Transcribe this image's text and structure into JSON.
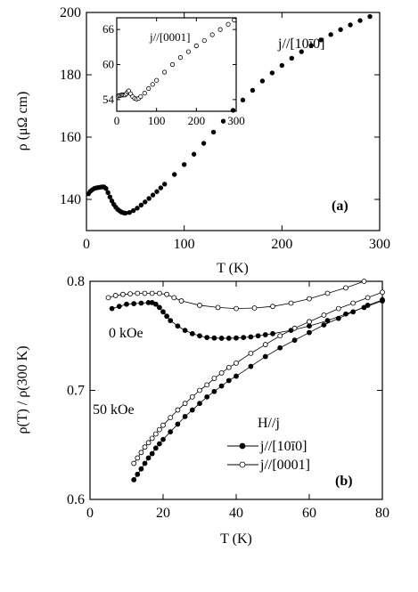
{
  "chart_data": [
    {
      "type": "scatter",
      "panel_label": "(a)",
      "annotation": "j//[10ī0]",
      "xlabel": "T (K)",
      "ylabel": "ρ (μΩ cm)",
      "xlim": [
        0,
        300
      ],
      "ylim": [
        130,
        200
      ],
      "xticks": [
        0,
        100,
        200,
        300
      ],
      "yticks": [
        140,
        160,
        180,
        200
      ],
      "series": [
        {
          "marker": "filled-circle",
          "x": [
            2,
            4,
            6,
            8,
            10,
            12,
            14,
            16,
            18,
            20,
            22,
            24,
            26,
            28,
            30,
            32,
            34,
            36,
            38,
            40,
            44,
            48,
            52,
            56,
            60,
            64,
            68,
            72,
            76,
            80,
            90,
            100,
            110,
            120,
            130,
            140,
            150,
            160,
            170,
            180,
            190,
            200,
            210,
            220,
            230,
            240,
            250,
            260,
            270,
            280,
            290
          ],
          "y": [
            141.8,
            142.6,
            143.1,
            143.5,
            143.7,
            143.8,
            143.9,
            144.0,
            144.0,
            143.5,
            142.2,
            140.8,
            139.5,
            138.4,
            137.5,
            136.8,
            136.3,
            135.9,
            135.7,
            135.6,
            135.8,
            136.4,
            137.2,
            138.2,
            139.2,
            140.3,
            141.4,
            142.5,
            143.7,
            144.9,
            148.0,
            151.2,
            154.5,
            158.0,
            161.6,
            165.1,
            168.6,
            171.9,
            175.0,
            178.0,
            180.6,
            183.0,
            185.3,
            187.4,
            189.4,
            191.2,
            192.9,
            194.5,
            196.0,
            197.4,
            198.7
          ]
        }
      ],
      "inset": {
        "annotation": "j//[0001]",
        "xlim": [
          0,
          300
        ],
        "ylim": [
          52,
          68
        ],
        "xticks": [
          0,
          100,
          200,
          300
        ],
        "yticks": [
          54,
          60,
          66
        ],
        "series": [
          {
            "marker": "open-circle",
            "x": [
              3,
              6,
              9,
              12,
              15,
              18,
              21,
              24,
              27,
              30,
              35,
              40,
              45,
              50,
              55,
              60,
              70,
              80,
              90,
              100,
              120,
              140,
              160,
              180,
              200,
              220,
              240,
              260,
              280,
              295
            ],
            "y": [
              54.6,
              54.7,
              54.7,
              54.8,
              54.8,
              54.8,
              54.8,
              55.0,
              55.3,
              55.5,
              55.0,
              54.5,
              54.2,
              54.1,
              54.2,
              54.5,
              55.1,
              55.9,
              56.6,
              57.3,
              58.7,
              60.0,
              61.2,
              62.2,
              63.2,
              64.1,
              65.1,
              66.0,
              66.9,
              67.6
            ]
          }
        ]
      }
    },
    {
      "type": "scatter",
      "panel_label": "(b)",
      "xlabel": "T (K)",
      "ylabel": "ρ(T) / ρ(300 K)",
      "xlim": [
        0,
        80
      ],
      "ylim": [
        0.6,
        0.8
      ],
      "xticks": [
        0,
        20,
        40,
        60,
        80
      ],
      "yticks": [
        0.6,
        0.7,
        0.8
      ],
      "annotations": [
        "0 kOe",
        "50 kOe"
      ],
      "legend": {
        "title": "H//j",
        "position": "bottom-right",
        "entries": [
          {
            "label": "j//[10ī0]",
            "marker": "filled-circle"
          },
          {
            "label": "j//[0001]",
            "marker": "open-circle"
          }
        ]
      },
      "series": [
        {
          "name": "j//[10ī0]",
          "field": "0 kOe",
          "marker": "filled-circle",
          "x": [
            6,
            8,
            10,
            12,
            14,
            16,
            17,
            18,
            19,
            20,
            21,
            22,
            24,
            26,
            28,
            30,
            32,
            34,
            36,
            38,
            40,
            42,
            44,
            46,
            48,
            50,
            55,
            60,
            65,
            70,
            75,
            80
          ],
          "y": [
            0.775,
            0.777,
            0.779,
            0.7795,
            0.78,
            0.7805,
            0.7805,
            0.779,
            0.776,
            0.772,
            0.768,
            0.764,
            0.759,
            0.755,
            0.752,
            0.75,
            0.7485,
            0.748,
            0.7478,
            0.7478,
            0.748,
            0.7485,
            0.749,
            0.75,
            0.751,
            0.752,
            0.755,
            0.759,
            0.764,
            0.77,
            0.776,
            0.782
          ]
        },
        {
          "name": "j//[0001]",
          "field": "0 kOe",
          "marker": "open-circle",
          "x": [
            5,
            7,
            9,
            11,
            13,
            15,
            17,
            19,
            21,
            23,
            25,
            30,
            35,
            40,
            45,
            50,
            55,
            60,
            65,
            70,
            75
          ],
          "y": [
            0.785,
            0.787,
            0.788,
            0.7885,
            0.789,
            0.789,
            0.789,
            0.789,
            0.788,
            0.785,
            0.782,
            0.778,
            0.776,
            0.775,
            0.7755,
            0.777,
            0.78,
            0.784,
            0.789,
            0.794,
            0.8
          ]
        },
        {
          "name": "j//[10ī0]",
          "field": "50 kOe",
          "marker": "filled-circle",
          "x": [
            12,
            13,
            14,
            15,
            16,
            17,
            18,
            19,
            20,
            22,
            24,
            26,
            28,
            30,
            32,
            34,
            36,
            38,
            40,
            44,
            48,
            52,
            56,
            60,
            64,
            68,
            72,
            76,
            80
          ],
          "y": [
            0.618,
            0.623,
            0.628,
            0.633,
            0.638,
            0.642,
            0.647,
            0.651,
            0.655,
            0.662,
            0.669,
            0.676,
            0.682,
            0.688,
            0.694,
            0.699,
            0.704,
            0.709,
            0.713,
            0.722,
            0.731,
            0.739,
            0.746,
            0.753,
            0.76,
            0.766,
            0.772,
            0.778,
            0.783
          ]
        },
        {
          "name": "j//[0001]",
          "field": "50 kOe",
          "marker": "open-circle",
          "x": [
            12,
            13,
            14,
            15,
            16,
            17,
            18,
            19,
            20,
            22,
            24,
            26,
            28,
            30,
            32,
            34,
            36,
            38,
            40,
            44,
            48,
            52,
            56,
            60,
            64,
            68,
            72,
            76,
            80
          ],
          "y": [
            0.633,
            0.638,
            0.643,
            0.648,
            0.652,
            0.656,
            0.66,
            0.664,
            0.668,
            0.675,
            0.682,
            0.688,
            0.694,
            0.7,
            0.705,
            0.711,
            0.716,
            0.721,
            0.725,
            0.734,
            0.742,
            0.75,
            0.757,
            0.763,
            0.769,
            0.775,
            0.78,
            0.785,
            0.79
          ]
        }
      ]
    }
  ]
}
